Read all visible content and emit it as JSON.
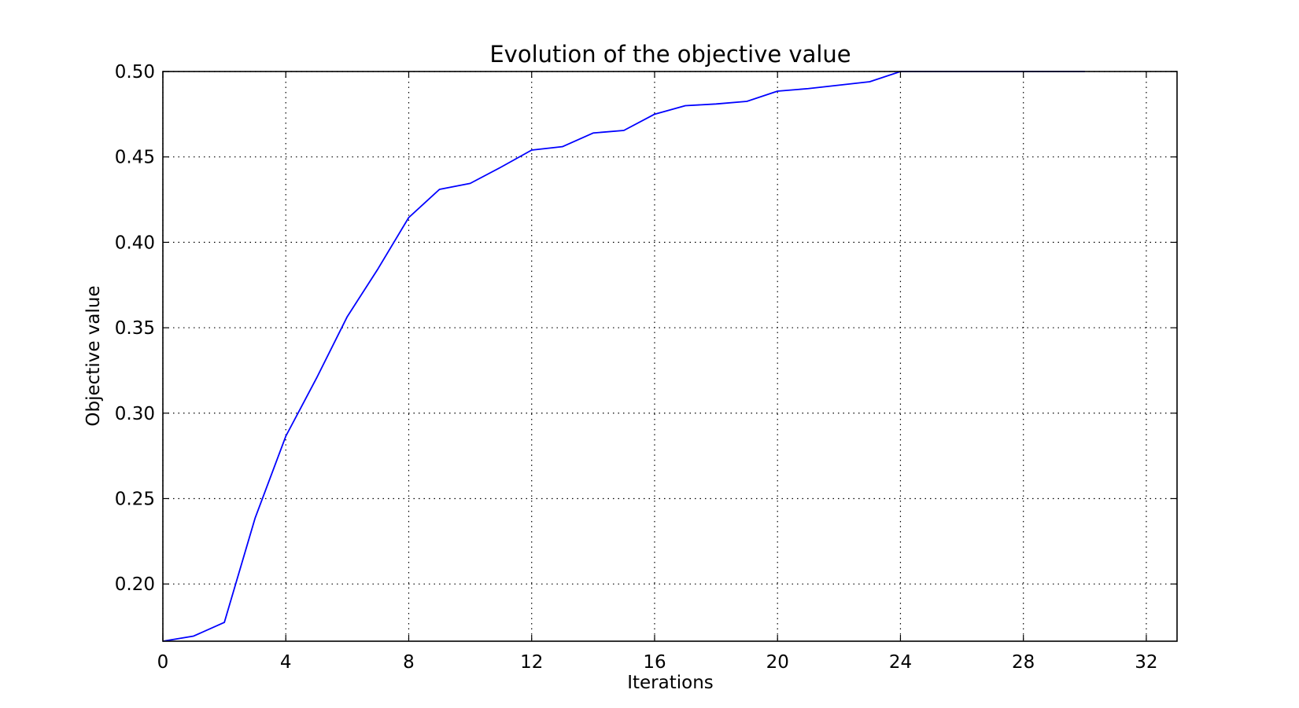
{
  "chart_data": {
    "type": "line",
    "title": "Evolution of the objective value",
    "xlabel": "Iterations",
    "ylabel": "Objective value",
    "xlim": [
      0,
      33
    ],
    "ylim": [
      0.1665,
      0.5
    ],
    "xticks": [
      0,
      4,
      8,
      12,
      16,
      20,
      24,
      28,
      32
    ],
    "xtick_labels": [
      "0",
      "4",
      "8",
      "12",
      "16",
      "20",
      "24",
      "28",
      "32"
    ],
    "yticks": [
      0.2,
      0.25,
      0.3,
      0.35,
      0.4,
      0.45,
      0.5
    ],
    "ytick_labels": [
      "0.20",
      "0.25",
      "0.30",
      "0.35",
      "0.40",
      "0.45",
      "0.50"
    ],
    "grid": true,
    "legend": false,
    "series": [
      {
        "color": "#0000ff",
        "x": [
          0,
          1,
          2,
          3,
          4,
          5,
          6,
          7,
          8,
          9,
          10,
          11,
          12,
          13,
          14,
          15,
          16,
          17,
          18,
          19,
          20,
          21,
          22,
          23,
          24,
          25,
          26,
          27,
          28,
          29,
          30
        ],
        "y": [
          0.1665,
          0.1695,
          0.1775,
          0.2385,
          0.2865,
          0.3205,
          0.3565,
          0.3845,
          0.4145,
          0.431,
          0.4345,
          0.444,
          0.454,
          0.456,
          0.464,
          0.4655,
          0.475,
          0.48,
          0.481,
          0.4825,
          0.4885,
          0.49,
          0.492,
          0.494,
          0.5,
          0.5,
          0.5,
          0.5,
          0.5,
          0.5,
          0.5
        ]
      }
    ]
  }
}
